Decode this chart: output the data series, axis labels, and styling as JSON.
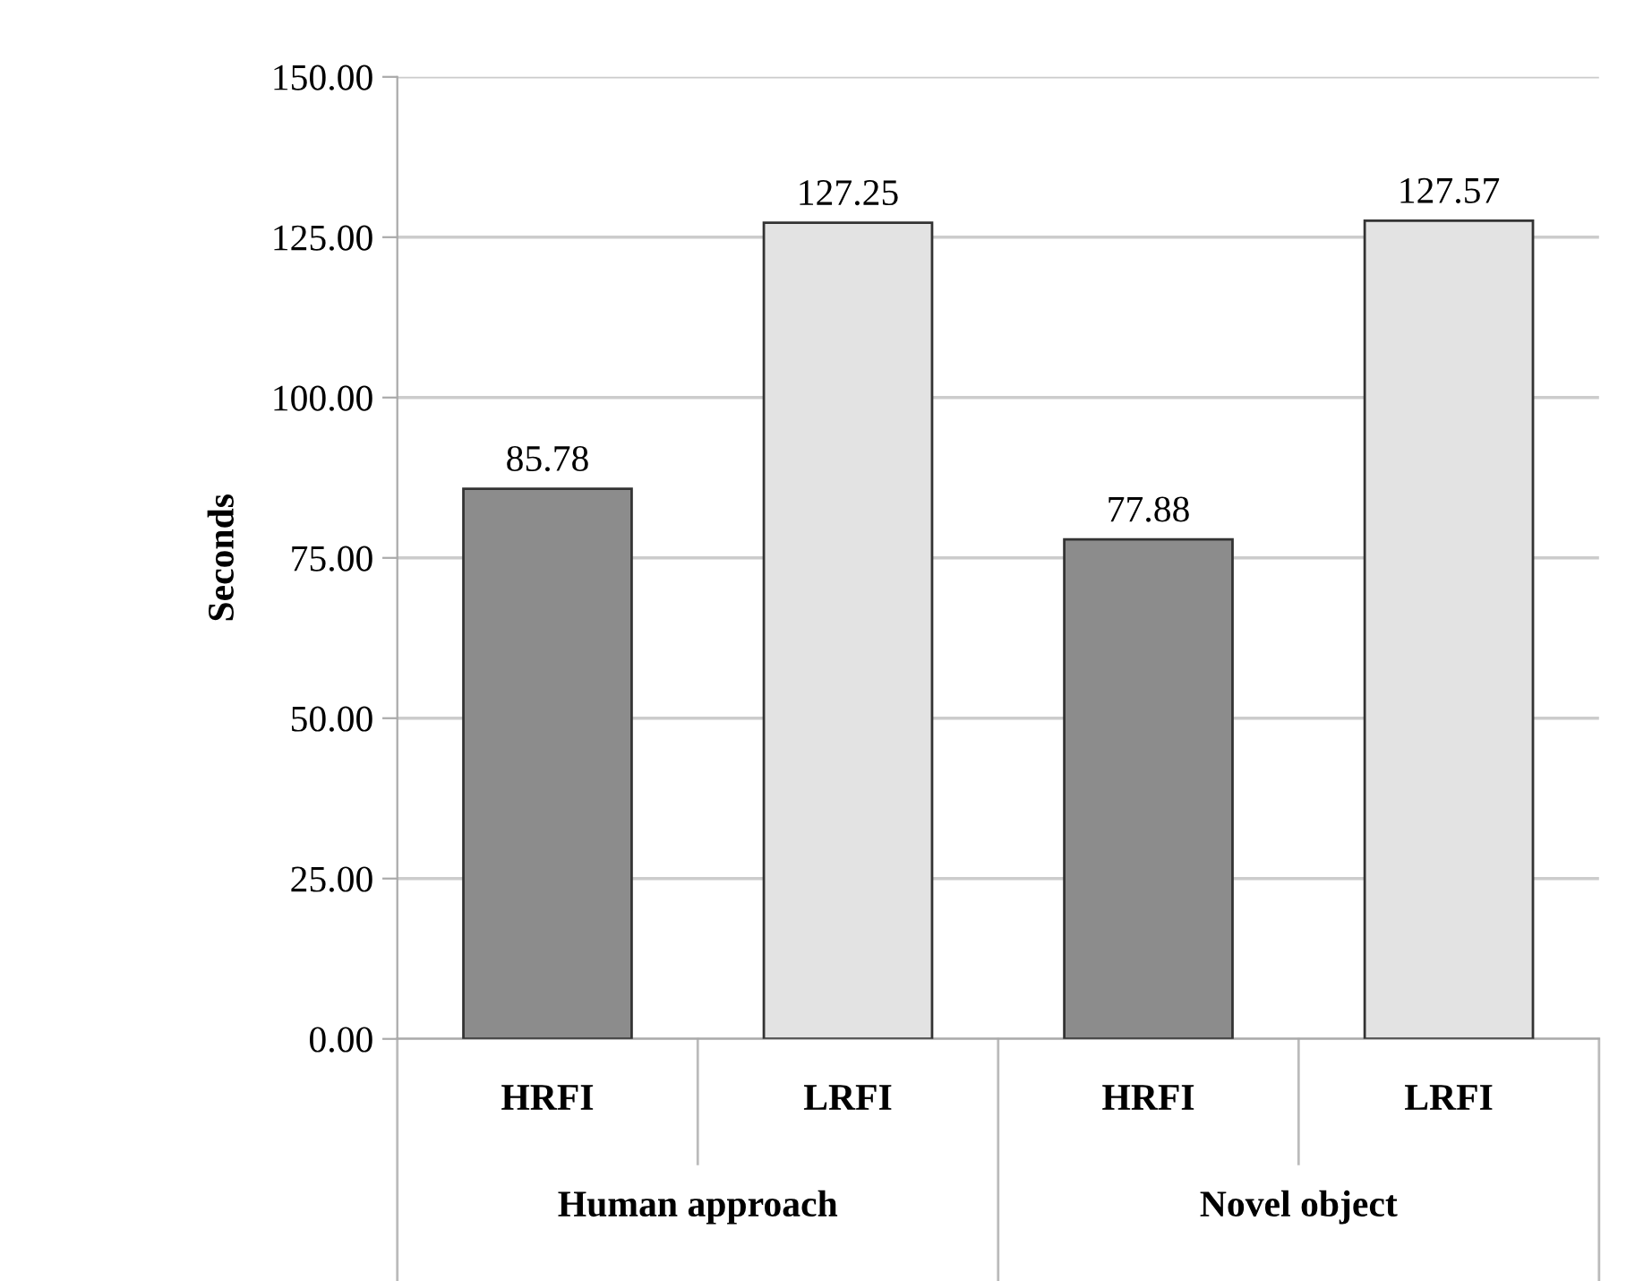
{
  "chart_data": {
    "type": "bar",
    "ylabel": "Seconds",
    "categories": [
      "HRFI",
      "LRFI",
      "HRFI",
      "LRFI"
    ],
    "values": [
      85.78,
      127.25,
      77.88,
      127.57
    ],
    "colors": [
      "#8c8c8c",
      "#e3e3e3",
      "#8c8c8c",
      "#e3e3e3"
    ],
    "ylim": [
      0,
      150
    ],
    "yticks": [
      {
        "value": 0,
        "label": "0.00"
      },
      {
        "value": 25,
        "label": "25.00"
      },
      {
        "value": 50,
        "label": "50.00"
      },
      {
        "value": 75,
        "label": "75.00"
      },
      {
        "value": 100,
        "label": "100.00"
      },
      {
        "value": 125,
        "label": "125.00"
      },
      {
        "value": 150,
        "label": "150.00"
      }
    ],
    "grid": "y",
    "data_labels": true,
    "annotations": [
      "Human approach",
      "Novel object"
    ]
  }
}
